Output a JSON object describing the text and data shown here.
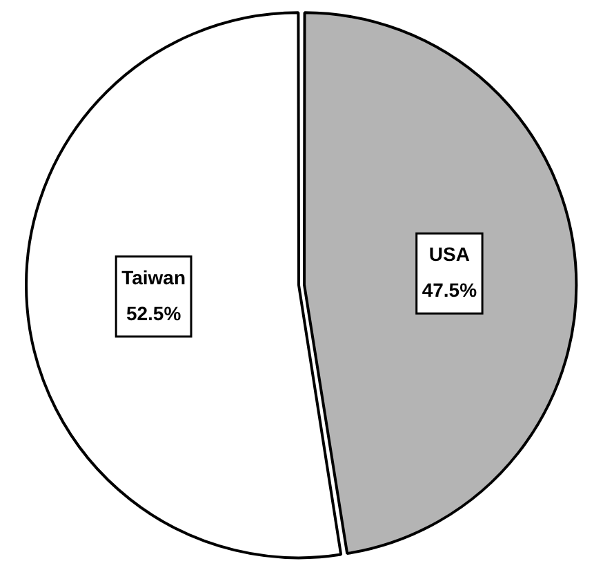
{
  "chart_data": {
    "type": "pie",
    "categories": [
      "USA",
      "Taiwan"
    ],
    "values": [
      47.5,
      52.5
    ],
    "colors": [
      "#b4b4b4",
      "#ffffff"
    ],
    "value_labels": [
      "47.5%",
      "52.5%"
    ],
    "legend": false
  }
}
